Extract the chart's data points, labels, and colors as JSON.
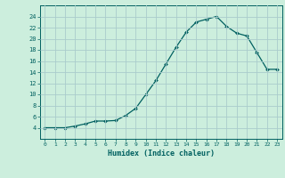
{
  "x": [
    0,
    1,
    2,
    3,
    4,
    5,
    6,
    7,
    8,
    9,
    10,
    11,
    12,
    13,
    14,
    15,
    16,
    17,
    18,
    19,
    20,
    21,
    22,
    23
  ],
  "y": [
    4.0,
    4.0,
    4.0,
    4.3,
    4.7,
    5.2,
    5.2,
    5.3,
    6.2,
    7.5,
    10.0,
    12.5,
    15.5,
    18.5,
    21.2,
    23.0,
    23.5,
    24.0,
    22.2,
    21.0,
    20.5,
    17.5,
    14.5,
    14.5
  ],
  "xlabel": "Humidex (Indice chaleur)",
  "line_color": "#006060",
  "marker_color": "#006060",
  "bg_color": "#cceedd",
  "grid_color": "#aacccc",
  "tick_color": "#006060",
  "ylim": [
    2,
    26
  ],
  "xlim": [
    -0.5,
    23.5
  ],
  "yticks": [
    4,
    6,
    8,
    10,
    12,
    14,
    16,
    18,
    20,
    22,
    24
  ],
  "xticks": [
    0,
    1,
    2,
    3,
    4,
    5,
    6,
    7,
    8,
    9,
    10,
    11,
    12,
    13,
    14,
    15,
    16,
    17,
    18,
    19,
    20,
    21,
    22,
    23
  ]
}
